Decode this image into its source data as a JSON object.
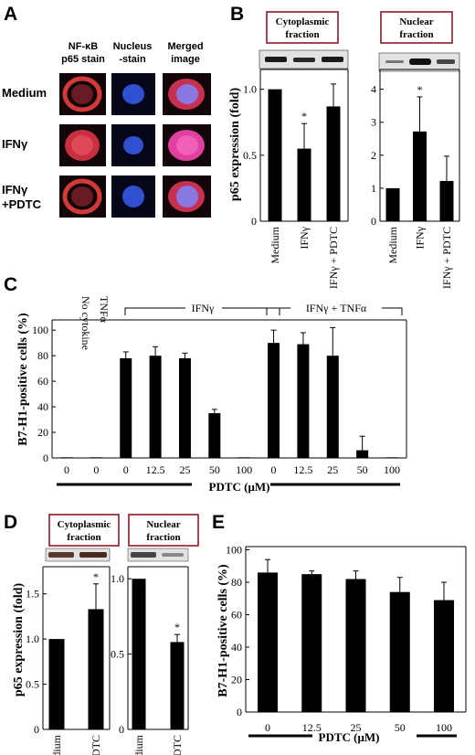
{
  "panel_labels": {
    "A": "A",
    "B": "B",
    "C": "C",
    "D": "D",
    "E": "E"
  },
  "panel_a": {
    "column_headers": [
      {
        "line1": "NF-κB",
        "line2": "p65 stain"
      },
      {
        "line1": "Nucleus",
        "line2": "-stain"
      },
      {
        "line1": "Merged",
        "line2": "image"
      }
    ],
    "row_labels": [
      {
        "line1": "Medium",
        "line2": ""
      },
      {
        "line1": "IFNγ",
        "line2": ""
      },
      {
        "line1": "IFNγ",
        "line2": "+PDTC"
      }
    ],
    "colors": {
      "red": "#d23a3a",
      "blue": "#3050d0",
      "magenta": "#e040a0",
      "dark": "#120608"
    }
  },
  "chart_data": [
    {
      "id": "B-cyto",
      "type": "bar",
      "box_label": [
        "Cytoplasmic",
        "fraction"
      ],
      "categories": [
        "Medium",
        "IFNγ",
        "IFNγ + PDTC"
      ],
      "values": [
        1.0,
        0.55,
        0.87
      ],
      "errors": [
        0,
        0.19,
        0.17
      ],
      "significance": [
        "",
        "*",
        ""
      ],
      "ylabel": "p65 expression (fold)",
      "yticks": [
        "0",
        "0.5",
        "1.0"
      ],
      "ylim": [
        0,
        1.15
      ]
    },
    {
      "id": "B-nuc",
      "type": "bar",
      "box_label": [
        "Nuclear",
        "fraction"
      ],
      "categories": [
        "Medium",
        "IFNγ",
        "IFNγ + PDTC"
      ],
      "values": [
        1.0,
        2.72,
        1.22
      ],
      "errors": [
        0,
        1.05,
        0.75
      ],
      "significance": [
        "",
        "*",
        ""
      ],
      "yticks": [
        "0",
        "1",
        "2",
        "3",
        "4"
      ],
      "ylim": [
        0,
        4.6
      ]
    },
    {
      "id": "C",
      "type": "bar",
      "ylabel": "B7-H1-positive cells (%)",
      "xlabel": "PDTC (μM)",
      "categories": [
        "0",
        "0",
        "0",
        "12.5",
        "25",
        "50",
        "100",
        "0",
        "12.5",
        "25",
        "50",
        "100"
      ],
      "values": [
        0.5,
        0.5,
        78,
        80,
        78,
        35,
        0.5,
        90,
        89,
        80,
        6,
        0.5
      ],
      "errors": [
        0,
        0,
        5,
        7,
        4,
        3,
        0,
        10,
        9,
        22,
        11,
        0
      ],
      "group_labels": {
        "no_cytokine": "No cytokine",
        "tnf": "TNFα",
        "ifn": "IFNγ",
        "ifn_tnf": "IFNγ + TNFα"
      },
      "yticks": [
        "0",
        "20",
        "40",
        "60",
        "80",
        "100"
      ],
      "ylim": [
        0,
        108
      ]
    },
    {
      "id": "D-cyto",
      "type": "bar",
      "box_label": [
        "Cytoplasmic",
        "fraction"
      ],
      "categories": [
        "Medium",
        "PDTC"
      ],
      "values": [
        1.0,
        1.33
      ],
      "errors": [
        0,
        0.28
      ],
      "significance": [
        "",
        "*"
      ],
      "ylabel": "p65 expression (fold)",
      "yticks": [
        "0",
        "0.5",
        "1.0",
        "1.5"
      ],
      "ylim": [
        0,
        1.8
      ]
    },
    {
      "id": "D-nuc",
      "type": "bar",
      "box_label": [
        "Nuclear",
        "fraction"
      ],
      "categories": [
        "Medium",
        "PDTC"
      ],
      "values": [
        1.0,
        0.58
      ],
      "errors": [
        0,
        0.05
      ],
      "significance": [
        "",
        "*"
      ],
      "yticks": [
        "0",
        "0.5",
        "1.0"
      ],
      "ylim": [
        0,
        1.08
      ]
    },
    {
      "id": "E",
      "type": "bar",
      "ylabel": "B7-H1-positive cells (%)",
      "xlabel": "PDTC (μM)",
      "categories": [
        "0",
        "12.5",
        "25",
        "50",
        "100"
      ],
      "values": [
        86,
        85,
        82,
        74,
        69
      ],
      "errors": [
        8,
        2,
        5,
        9,
        11
      ],
      "yticks": [
        "0",
        "20",
        "40",
        "60",
        "80",
        "100"
      ],
      "ylim": [
        0,
        102
      ]
    }
  ]
}
